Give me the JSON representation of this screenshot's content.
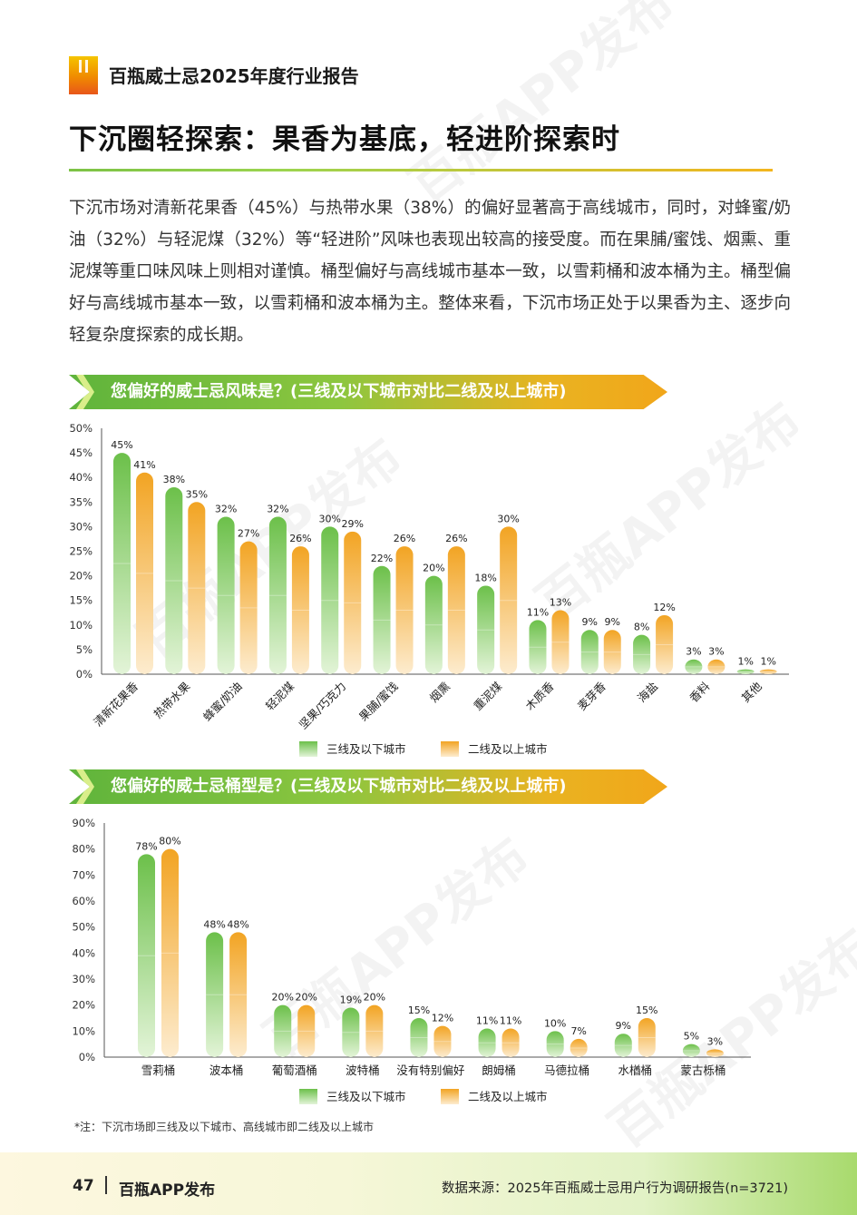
{
  "header": {
    "report_title": "百瓶威士忌2025年度行业报告"
  },
  "page_title": "下沉圈轻探索：果香为基底，轻进阶探索时",
  "intro_text": "下沉市场对清新花果香（45%）与热带水果（38%）的偏好显著高于高线城市，同时，对蜂蜜/奶油（32%）与轻泥煤（32%）等“轻进阶”风味也表现出较高的接受度。而在果脯/蜜饯、烟熏、重泥煤等重口味风味上则相对谨慎。桶型偏好与高线城市基本一致，以雪莉桶和波本桶为主。桶型偏好与高线城市基本一致，以雪莉桶和波本桶为主。整体来看，下沉市场正处于以果香为主、逐步向轻复杂度探索的成长期。",
  "colors": {
    "green": "#6cc04a",
    "orange": "#f2a423",
    "green_light": "#e3f4d8",
    "orange_light": "#fdeccf",
    "banner_green": "#5fb43c",
    "banner_orange": "#f1a61a"
  },
  "chart_data": [
    {
      "type": "bar",
      "title": "您偏好的威士忌风味是？(三线及以下城市对比二线及以上城市)",
      "categories": [
        "清新花果香",
        "热带水果",
        "蜂蜜/奶油",
        "轻泥煤",
        "坚果/巧克力",
        "果脯/蜜饯",
        "烟熏",
        "重泥煤",
        "木质香",
        "麦芽香",
        "海盐",
        "香料",
        "其他"
      ],
      "series": [
        {
          "name": "三线及以下城市",
          "values": [
            45,
            38,
            32,
            32,
            30,
            22,
            20,
            18,
            11,
            9,
            8,
            3,
            1
          ]
        },
        {
          "name": "二线及以上城市",
          "values": [
            41,
            35,
            27,
            26,
            29,
            26,
            26,
            30,
            13,
            9,
            12,
            3,
            1
          ]
        }
      ],
      "value_labels": [
        [
          "45%",
          "38%",
          "32%",
          "32%",
          "30%",
          "22%",
          "20%",
          "18%",
          "11%",
          "9%",
          "8%",
          "3%",
          "1%"
        ],
        [
          "41%",
          "35%",
          "27%",
          "26%",
          "29%",
          "26%",
          "26%",
          "30%",
          "13%",
          "9%",
          "12%",
          "3%",
          "1%"
        ]
      ],
      "ylim": [
        0,
        50
      ],
      "yticks": [
        "0%",
        "5%",
        "10%",
        "15%",
        "20%",
        "25%",
        "30%",
        "35%",
        "40%",
        "45%",
        "50%"
      ],
      "xlabel": "",
      "ylabel": "",
      "grid": false,
      "legend": "bottom",
      "x_label_rotation": "rotated"
    },
    {
      "type": "bar",
      "title": "您偏好的威士忌桶型是？(三线及以下城市对比二线及以上城市)",
      "categories": [
        "雪莉桶",
        "波本桶",
        "葡萄酒桶",
        "波特桶",
        "没有特别偏好",
        "朗姆桶",
        "马德拉桶",
        "水楢桶",
        "蒙古栎桶"
      ],
      "series": [
        {
          "name": "三线及以下城市",
          "values": [
            78,
            48,
            20,
            19,
            15,
            11,
            10,
            9,
            5
          ]
        },
        {
          "name": "二线及以上城市",
          "values": [
            80,
            48,
            20,
            20,
            12,
            11,
            7,
            15,
            3
          ]
        }
      ],
      "value_labels": [
        [
          "78%",
          "48%",
          "20%",
          "19%",
          "15%",
          "11%",
          "10%",
          "9%",
          "5%"
        ],
        [
          "80%",
          "48%",
          "20%",
          "20%",
          "12%",
          "11%",
          "7%",
          "15%",
          "3%"
        ]
      ],
      "ylim": [
        0,
        90
      ],
      "yticks": [
        "0%",
        "10%",
        "20%",
        "30%",
        "40%",
        "50%",
        "60%",
        "70%",
        "80%",
        "90%"
      ],
      "xlabel": "",
      "ylabel": "",
      "grid": false,
      "legend": "bottom",
      "x_label_rotation": "none"
    }
  ],
  "footnote": "*注：下沉市场即三线及以下城市、高线城市即二线及以上城市",
  "footer": {
    "page_number": "47",
    "brand": "百瓶APP发布",
    "source": "数据来源：2025年百瓶威士忌用户行为调研报告(n=3721)"
  },
  "watermark_text": "百瓶APP发布"
}
